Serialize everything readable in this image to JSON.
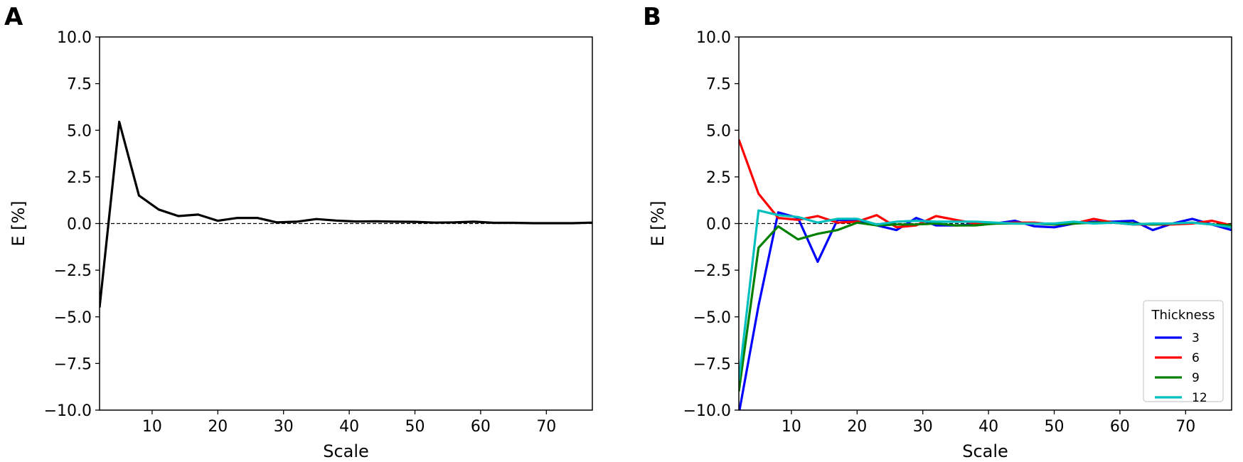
{
  "chart_data": [
    {
      "type": "line",
      "panel_label": "A",
      "xlabel": "Scale",
      "ylabel": "E [%]",
      "xlim": [
        2,
        77
      ],
      "ylim": [
        -10,
        10
      ],
      "x_ticks": [
        10,
        20,
        30,
        40,
        50,
        60,
        70
      ],
      "x_tick_labels": [
        "10",
        "20",
        "30",
        "40",
        "50",
        "60",
        "70"
      ],
      "y_ticks": [
        10,
        7.5,
        5,
        2.5,
        0,
        -2.5,
        -5,
        -7.5,
        -10
      ],
      "y_tick_labels": [
        "10.0",
        "7.5",
        "5.0",
        "2.5",
        "0.0",
        "−2.5",
        "−5.0",
        "−7.5",
        "−10.0"
      ],
      "reference_line": {
        "y": 0,
        "style": "dashed",
        "color": "#000000"
      },
      "legend": null,
      "series": [
        {
          "name": "E",
          "color": "#000000",
          "x": [
            2,
            5,
            8,
            11,
            14,
            17,
            20,
            23,
            26,
            29,
            32,
            35,
            38,
            41,
            44,
            47,
            50,
            53,
            56,
            59,
            62,
            65,
            68,
            71,
            74,
            77
          ],
          "values": [
            -4.5,
            5.45,
            1.5,
            0.75,
            0.4,
            0.48,
            0.15,
            0.3,
            0.3,
            0.06,
            0.1,
            0.24,
            0.16,
            0.11,
            0.12,
            0.1,
            0.09,
            0.05,
            0.06,
            0.1,
            0.04,
            0.04,
            0.02,
            0.02,
            0.02,
            0.05
          ]
        }
      ]
    },
    {
      "type": "line",
      "panel_label": "B",
      "xlabel": "Scale",
      "ylabel": "E [%]",
      "xlim": [
        2,
        77
      ],
      "ylim": [
        -10,
        10
      ],
      "x_ticks": [
        10,
        20,
        30,
        40,
        50,
        60,
        70
      ],
      "x_tick_labels": [
        "10",
        "20",
        "30",
        "40",
        "50",
        "60",
        "70"
      ],
      "y_ticks": [
        10,
        7.5,
        5,
        2.5,
        0,
        -2.5,
        -5,
        -7.5,
        -10
      ],
      "y_tick_labels": [
        "10.0",
        "7.5",
        "5.0",
        "2.5",
        "0.0",
        "−2.5",
        "−5.0",
        "−7.5",
        "−10.0"
      ],
      "reference_line": {
        "y": 0,
        "style": "dashed",
        "color": "#000000"
      },
      "legend": {
        "title": "Thickness",
        "position": "lower-right"
      },
      "series": [
        {
          "name": "3",
          "color": "#0000ff",
          "x": [
            2,
            5,
            8,
            11,
            14,
            17,
            20,
            23,
            26,
            29,
            32,
            35,
            38,
            41,
            44,
            47,
            50,
            53,
            56,
            59,
            62,
            65,
            68,
            71,
            74,
            77
          ],
          "values": [
            -10.2,
            -4.4,
            0.6,
            0.3,
            -2.05,
            0.2,
            0.15,
            -0.1,
            -0.35,
            0.3,
            -0.1,
            -0.1,
            -0.05,
            0.0,
            0.15,
            -0.15,
            -0.2,
            0.0,
            0.1,
            0.1,
            0.15,
            -0.35,
            0.0,
            0.25,
            -0.05,
            -0.35
          ]
        },
        {
          "name": "6",
          "color": "#ff0000",
          "x": [
            2,
            5,
            8,
            11,
            14,
            17,
            20,
            23,
            26,
            29,
            32,
            35,
            38,
            41,
            44,
            47,
            50,
            53,
            56,
            59,
            62,
            65,
            68,
            71,
            74,
            77
          ],
          "values": [
            4.5,
            1.6,
            0.3,
            0.2,
            0.4,
            0.05,
            0.1,
            0.45,
            -0.2,
            -0.1,
            0.4,
            0.2,
            0.0,
            0.0,
            0.05,
            0.05,
            -0.05,
            0.0,
            0.25,
            0.05,
            -0.05,
            -0.05,
            -0.05,
            0.0,
            0.15,
            -0.1
          ]
        },
        {
          "name": "9",
          "color": "#008000",
          "x": [
            2,
            5,
            8,
            11,
            14,
            17,
            20,
            23,
            26,
            29,
            32,
            35,
            38,
            41,
            44,
            47,
            50,
            53,
            56,
            59,
            62,
            65,
            68,
            71,
            74,
            77
          ],
          "values": [
            -9.0,
            -1.3,
            -0.15,
            -0.85,
            -0.55,
            -0.35,
            0.05,
            -0.1,
            -0.05,
            -0.05,
            0.0,
            -0.1,
            -0.1,
            0.0,
            0.0,
            0.0,
            -0.05,
            0.0,
            0.05,
            0.05,
            0.0,
            -0.05,
            0.0,
            0.05,
            -0.05,
            -0.1
          ]
        },
        {
          "name": "12",
          "color": "#00bfbf",
          "x": [
            2,
            5,
            8,
            11,
            14,
            17,
            20,
            23,
            26,
            29,
            32,
            35,
            38,
            41,
            44,
            47,
            50,
            53,
            56,
            59,
            62,
            65,
            68,
            71,
            74,
            77
          ],
          "values": [
            -8.4,
            0.7,
            0.45,
            0.35,
            0.05,
            0.25,
            0.25,
            -0.05,
            0.1,
            0.15,
            0.1,
            0.1,
            0.1,
            0.05,
            0.0,
            0.0,
            0.0,
            0.1,
            0.0,
            0.05,
            -0.05,
            0.0,
            0.0,
            0.05,
            -0.05,
            -0.2
          ]
        }
      ]
    }
  ]
}
